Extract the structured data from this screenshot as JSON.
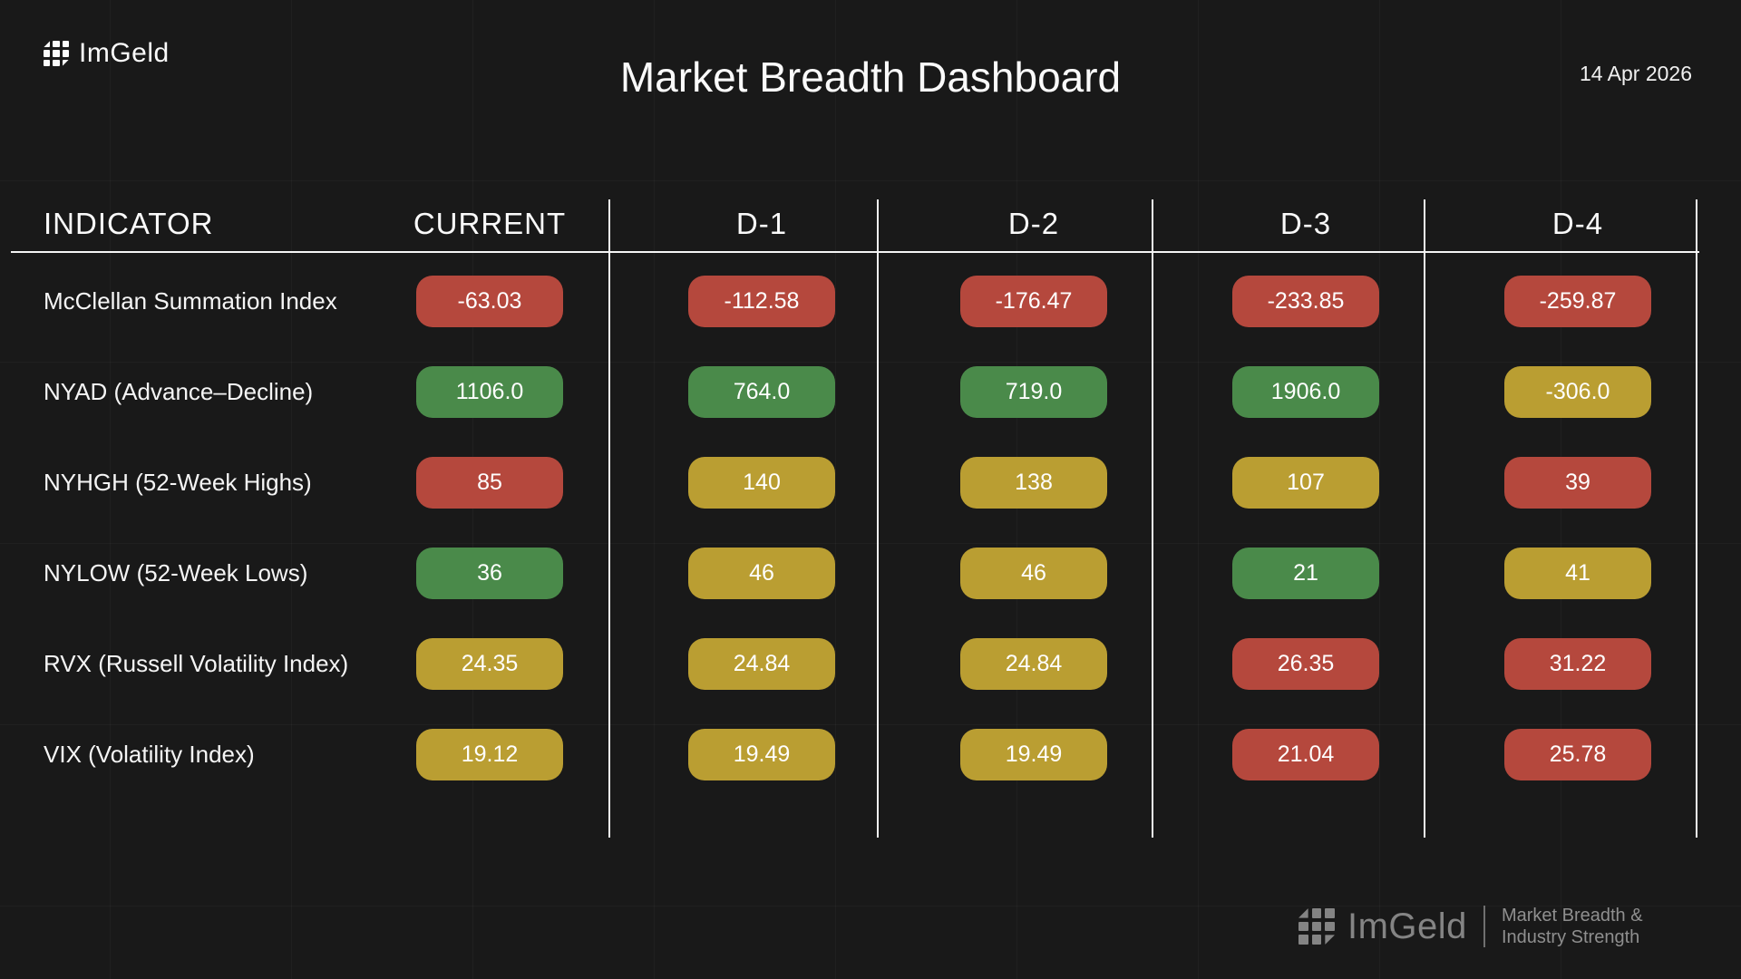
{
  "brand": {
    "name": "ImGeld"
  },
  "header": {
    "title": "Market Breadth Dashboard",
    "date": "14 Apr 2026"
  },
  "table": {
    "columns": [
      "INDICATOR",
      "CURRENT",
      "D-1",
      "D-2",
      "D-3",
      "D-4"
    ],
    "rows": [
      {
        "label": "McClellan Summation Index",
        "cells": [
          {
            "value": "-63.03",
            "color": "red"
          },
          {
            "value": "-112.58",
            "color": "red"
          },
          {
            "value": "-176.47",
            "color": "red"
          },
          {
            "value": "-233.85",
            "color": "red"
          },
          {
            "value": "-259.87",
            "color": "red"
          }
        ]
      },
      {
        "label": "NYAD (Advance–Decline)",
        "cells": [
          {
            "value": "1106.0",
            "color": "green"
          },
          {
            "value": "764.0",
            "color": "green"
          },
          {
            "value": "719.0",
            "color": "green"
          },
          {
            "value": "1906.0",
            "color": "green"
          },
          {
            "value": "-306.0",
            "color": "yellow"
          }
        ]
      },
      {
        "label": "NYHGH (52-Week Highs)",
        "cells": [
          {
            "value": "85",
            "color": "red"
          },
          {
            "value": "140",
            "color": "yellow"
          },
          {
            "value": "138",
            "color": "yellow"
          },
          {
            "value": "107",
            "color": "yellow"
          },
          {
            "value": "39",
            "color": "red"
          }
        ]
      },
      {
        "label": "NYLOW (52-Week Lows)",
        "cells": [
          {
            "value": "36",
            "color": "green"
          },
          {
            "value": "46",
            "color": "yellow"
          },
          {
            "value": "46",
            "color": "yellow"
          },
          {
            "value": "21",
            "color": "green"
          },
          {
            "value": "41",
            "color": "yellow"
          }
        ]
      },
      {
        "label": "RVX (Russell Volatility Index)",
        "cells": [
          {
            "value": "24.35",
            "color": "yellow"
          },
          {
            "value": "24.84",
            "color": "yellow"
          },
          {
            "value": "24.84",
            "color": "yellow"
          },
          {
            "value": "26.35",
            "color": "red"
          },
          {
            "value": "31.22",
            "color": "red"
          }
        ]
      },
      {
        "label": "VIX (Volatility Index)",
        "cells": [
          {
            "value": "19.12",
            "color": "yellow"
          },
          {
            "value": "19.49",
            "color": "yellow"
          },
          {
            "value": "19.49",
            "color": "yellow"
          },
          {
            "value": "21.04",
            "color": "red"
          },
          {
            "value": "25.78",
            "color": "red"
          }
        ]
      }
    ]
  },
  "footer": {
    "brand": "ImGeld",
    "tagline_line1": "Market Breadth &",
    "tagline_line2": "Industry Strength"
  },
  "colors": {
    "red": "#b5483d",
    "green": "#4a8a4a",
    "yellow": "#ba9e32",
    "background": "#191919",
    "line": "#f5f5f5"
  },
  "chart_data": {
    "type": "table",
    "title": "Market Breadth Dashboard",
    "date": "14 Apr 2026",
    "columns": [
      "INDICATOR",
      "CURRENT",
      "D-1",
      "D-2",
      "D-3",
      "D-4"
    ],
    "rows": [
      {
        "indicator": "McClellan Summation Index",
        "values": [
          -63.03,
          -112.58,
          -176.47,
          -233.85,
          -259.87
        ],
        "cell_colors": [
          "red",
          "red",
          "red",
          "red",
          "red"
        ]
      },
      {
        "indicator": "NYAD (Advance–Decline)",
        "values": [
          1106.0,
          764.0,
          719.0,
          1906.0,
          -306.0
        ],
        "cell_colors": [
          "green",
          "green",
          "green",
          "green",
          "yellow"
        ]
      },
      {
        "indicator": "NYHGH (52-Week Highs)",
        "values": [
          85,
          140,
          138,
          107,
          39
        ],
        "cell_colors": [
          "red",
          "yellow",
          "yellow",
          "yellow",
          "red"
        ]
      },
      {
        "indicator": "NYLOW (52-Week Lows)",
        "values": [
          36,
          46,
          46,
          21,
          41
        ],
        "cell_colors": [
          "green",
          "yellow",
          "yellow",
          "green",
          "yellow"
        ]
      },
      {
        "indicator": "RVX (Russell Volatility Index)",
        "values": [
          24.35,
          24.84,
          24.84,
          26.35,
          31.22
        ],
        "cell_colors": [
          "yellow",
          "yellow",
          "yellow",
          "red",
          "red"
        ]
      },
      {
        "indicator": "VIX (Volatility Index)",
        "values": [
          19.12,
          19.49,
          19.49,
          21.04,
          25.78
        ],
        "cell_colors": [
          "yellow",
          "yellow",
          "yellow",
          "red",
          "red"
        ]
      }
    ]
  }
}
